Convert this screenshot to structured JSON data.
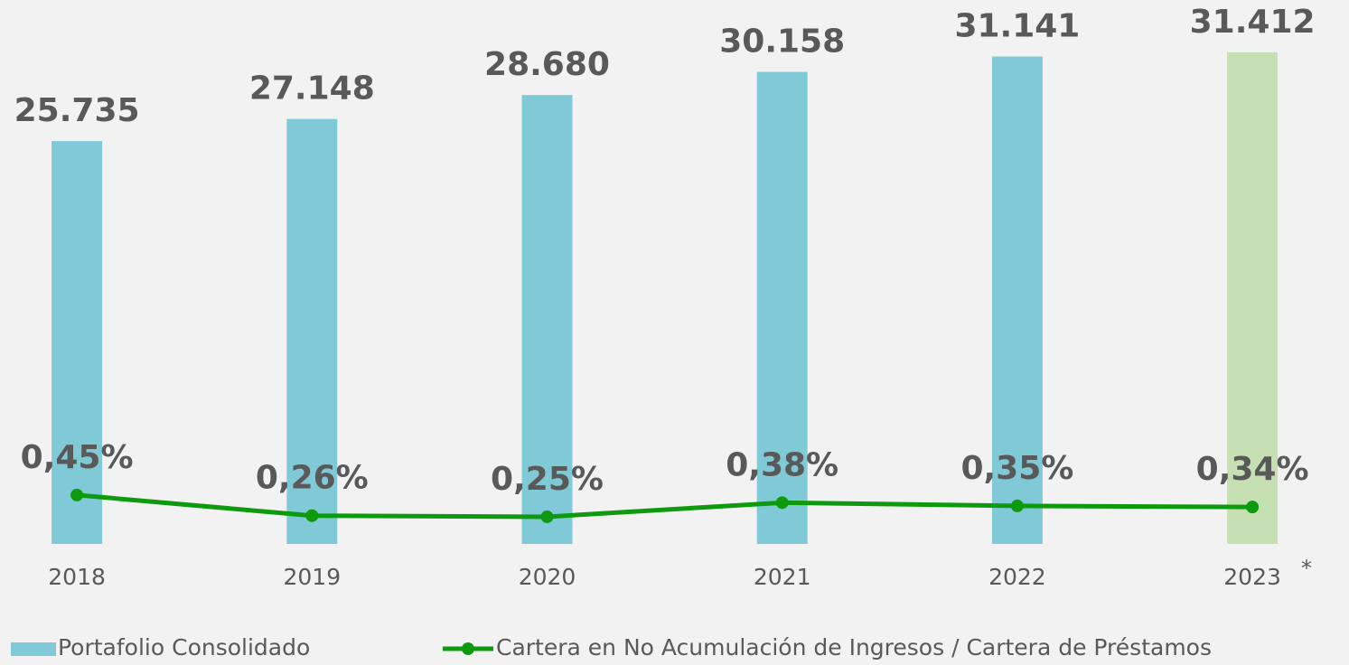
{
  "chart_data": {
    "type": "bar_line",
    "categories": [
      "2018",
      "2019",
      "2020",
      "2021",
      "2022",
      "2023"
    ],
    "annotation": "*",
    "series": [
      {
        "name": "Portafolio Consolidado",
        "type": "bar",
        "color": "#80cad8",
        "colors": [
          "#80cad8",
          "#80cad8",
          "#80cad8",
          "#80cad8",
          "#80cad8",
          "#c6e0b4"
        ],
        "values": [
          25735,
          27148,
          28680,
          30158,
          31141,
          31412
        ],
        "value_labels": [
          "25.735",
          "27.148",
          "28.680",
          "30.158",
          "31.141",
          "31.412"
        ]
      },
      {
        "name": "Cartera en No Acumulación de Ingresos / Cartera de Préstamos",
        "type": "line",
        "axis": "y2",
        "color": "#0e9a0e",
        "values": [
          0.45,
          0.26,
          0.25,
          0.38,
          0.35,
          0.34
        ],
        "value_labels": [
          "0,45%",
          "0,26%",
          "0,25%",
          "0,38%",
          "0,35%",
          "0,34%"
        ]
      }
    ],
    "ylim": [
      0,
      34000
    ],
    "y2lim": [
      0,
      4.9
    ],
    "grid": false
  }
}
